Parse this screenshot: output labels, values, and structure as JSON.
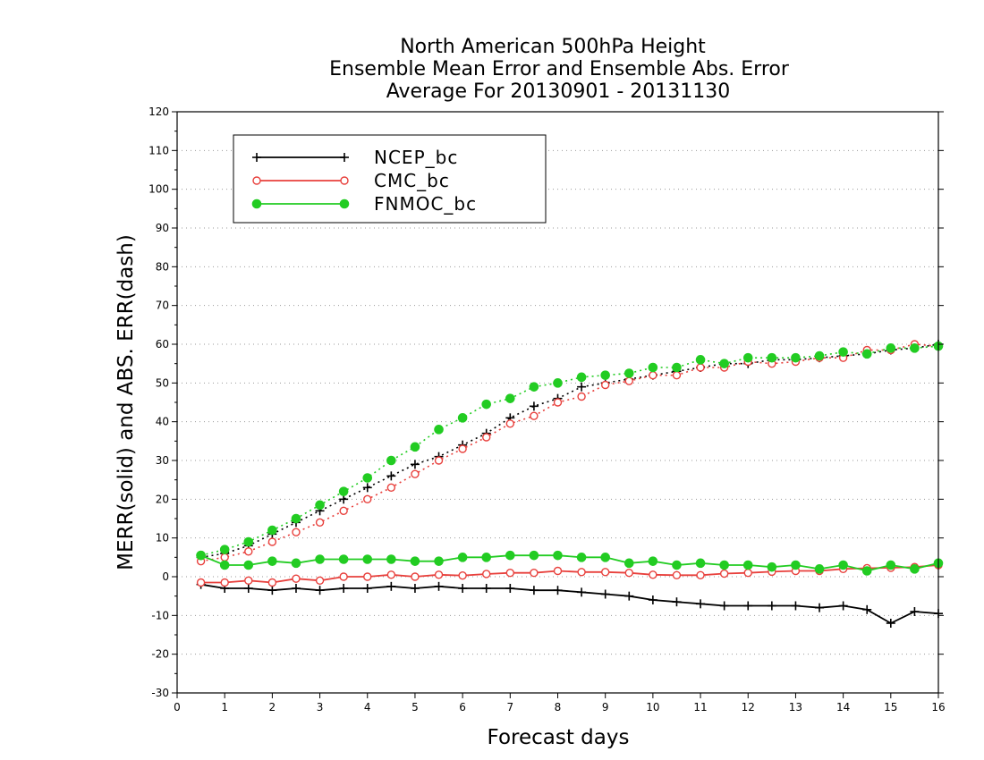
{
  "chart_data": {
    "type": "line",
    "title_lines": [
      "North American 500hPa Height",
      "Ensemble Mean Error and Ensemble Abs. Error",
      "Average For 20130901 - 20131130"
    ],
    "xlabel": "Forecast days",
    "ylabel": "MERR(solid) and ABS. ERR(dash)",
    "xlim": [
      0,
      16
    ],
    "ylim": [
      -30,
      120
    ],
    "x_ticks": [
      0,
      1,
      2,
      3,
      4,
      5,
      6,
      7,
      8,
      9,
      10,
      11,
      12,
      13,
      14,
      15,
      16
    ],
    "x_tick_labels": [
      "0",
      "1",
      "2",
      "3",
      "4",
      "5",
      "6",
      "7",
      "8",
      "9",
      "10",
      "11",
      "12",
      "13",
      "14",
      "15",
      "16"
    ],
    "y_ticks": [
      -30,
      -20,
      -10,
      0,
      10,
      20,
      30,
      40,
      50,
      60,
      70,
      80,
      90,
      100,
      110,
      120
    ],
    "y_tick_labels": [
      "-30",
      "-20",
      "-10",
      "0",
      "10",
      "20",
      "30",
      "40",
      "50",
      "60",
      "70",
      "80",
      "90",
      "100",
      "110",
      "120"
    ],
    "grid": "horizontal dotted",
    "legend_position": "top-left",
    "x": [
      0.5,
      1,
      1.5,
      2,
      2.5,
      3,
      3.5,
      4,
      4.5,
      5,
      5.5,
      6,
      6.5,
      7,
      7.5,
      8,
      8.5,
      9,
      9.5,
      10,
      10.5,
      11,
      11.5,
      12,
      12.5,
      13,
      13.5,
      14,
      14.5,
      15,
      15.5,
      16
    ],
    "series": [
      {
        "name": "NCEP_bc",
        "color": "#000000",
        "marker": "plus",
        "merr": [
          -2,
          -3,
          -3,
          -3.5,
          -3,
          -3.5,
          -3,
          -3,
          -2.5,
          -3,
          -2.5,
          -3,
          -3,
          -3,
          -3.5,
          -3.5,
          -4,
          -4.5,
          -5,
          -6,
          -6.5,
          -7,
          -7.5,
          -7.5,
          -7.5,
          -7.5,
          -8,
          -7.5,
          -8.5,
          -12,
          -9,
          -9.5
        ],
        "abs_err": [
          5,
          6,
          8,
          11,
          14,
          17,
          20,
          23,
          26,
          29,
          31,
          34,
          37,
          41,
          44,
          46,
          49,
          50,
          51,
          52,
          53,
          54,
          55,
          55,
          56,
          56,
          56.5,
          57,
          57.5,
          58.5,
          59,
          60
        ]
      },
      {
        "name": "CMC_bc",
        "color": "#e8403c",
        "marker": "open-circle",
        "merr": [
          -1.5,
          -1.5,
          -1,
          -1.5,
          -0.5,
          -1,
          0,
          0,
          0.5,
          0,
          0.5,
          0.3,
          0.7,
          1,
          1,
          1.5,
          1.2,
          1.2,
          1,
          0.5,
          0.4,
          0.4,
          0.8,
          1,
          1.3,
          1.5,
          1.5,
          2,
          2.2,
          2.3,
          2.5,
          3
        ],
        "abs_err": [
          4,
          5,
          6.5,
          9,
          11.5,
          14,
          17,
          20,
          23,
          26.5,
          30,
          33,
          36,
          39.5,
          41.5,
          45,
          46.5,
          49.5,
          50.5,
          52,
          52,
          54,
          54,
          55.5,
          55,
          55.5,
          56.5,
          56.5,
          58.5,
          58.5,
          60,
          59.5
        ]
      },
      {
        "name": "FNMOC_bc",
        "color": "#22cc22",
        "marker": "filled-circle",
        "merr": [
          5.5,
          3,
          3,
          4,
          3.5,
          4.5,
          4.5,
          4.5,
          4.5,
          4,
          4,
          5,
          5,
          5.5,
          5.5,
          5.5,
          5,
          5,
          3.5,
          4,
          3,
          3.5,
          3,
          3,
          2.5,
          3,
          2,
          3,
          1.5,
          3,
          2,
          3.5
        ],
        "abs_err": [
          5.5,
          7,
          9,
          12,
          15,
          18.5,
          22,
          25.5,
          30,
          33.5,
          38,
          41,
          44.5,
          46,
          49,
          50,
          51.5,
          52,
          52.5,
          54,
          54,
          56,
          55,
          56.5,
          56.5,
          56.5,
          57,
          58,
          57.5,
          59,
          59,
          59.5
        ]
      }
    ]
  }
}
